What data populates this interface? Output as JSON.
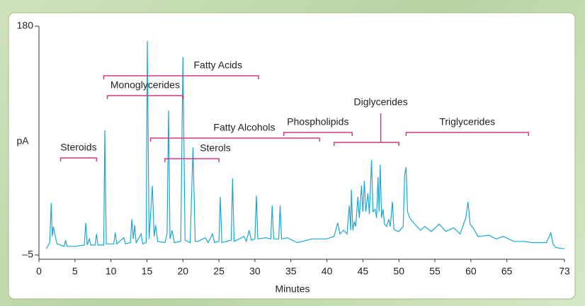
{
  "chart_data": {
    "type": "line",
    "y_label": "pA",
    "x_label": "Minutes",
    "xlim": [
      0,
      73
    ],
    "xticks": [
      0,
      5,
      10,
      15,
      20,
      25,
      30,
      35,
      40,
      45,
      50,
      55,
      60,
      65,
      73
    ],
    "ylim": [
      -5,
      180
    ],
    "yticks": [
      {
        "value": -5,
        "label": "–5"
      },
      180
    ],
    "series": [
      {
        "color": "#1ba8d8",
        "x": [
          1.0,
          1.2,
          1.5,
          1.7,
          1.85,
          2.0,
          2.2,
          2.5,
          3.0,
          3.5,
          3.7,
          3.9,
          5,
          6.3,
          6.5,
          6.7,
          7.0,
          7.2,
          7.8,
          8.0,
          8.2,
          9.0,
          9.15,
          9.35,
          10.4,
          10.6,
          10.8,
          11.8,
          12.0,
          12.7,
          12.9,
          13.1,
          13.3,
          13.5,
          14.2,
          14.4,
          14.9,
          15.05,
          15.3,
          15.75,
          16.0,
          16.2,
          16.5,
          17.5,
          17.8,
          18.0,
          18.2,
          18.5,
          18.8,
          19.7,
          20.0,
          20.3,
          21.0,
          21.4,
          21.7,
          22.1,
          23.1,
          23.5,
          24.1,
          24.4,
          25.0,
          25.2,
          25.4,
          26.0,
          26.7,
          26.9,
          27.1,
          28.5,
          28.8,
          29.2,
          29.5,
          30.0,
          30.2,
          30.4,
          31.5,
          32.2,
          32.4,
          32.6,
          33.3,
          33.5,
          33.7,
          34.5,
          35.9,
          37.9,
          39.9,
          41.0,
          41.5,
          41.8,
          42.3,
          42.8,
          43.1,
          43.3,
          43.4,
          43.6,
          43.8,
          44.0,
          44.3,
          44.5,
          44.8,
          45.0,
          45.2,
          45.4,
          45.7,
          45.9,
          46.2,
          46.4,
          46.7,
          46.9,
          47.1,
          47.25,
          47.4,
          47.6,
          47.8,
          48.0,
          48.3,
          48.6,
          48.8,
          49.1,
          49.3,
          49.5,
          50.0,
          50.6,
          50.8,
          51.0,
          51.2,
          51.5,
          52.2,
          53.0,
          53.6,
          54.5,
          55.6,
          56.5,
          57.6,
          58.5,
          59.3,
          59.6,
          59.9,
          60.3,
          61.0,
          62.5,
          63.5,
          64.5,
          66.0,
          67.4,
          68.5,
          70.5,
          71.1,
          71.4,
          71.8,
          73.0
        ],
        "values": [
          0,
          2,
          5,
          37,
          10,
          18,
          12,
          4,
          3,
          2,
          7,
          2,
          2,
          3,
          21,
          3,
          8,
          3,
          3,
          12,
          3,
          3,
          96,
          4,
          4,
          13,
          4,
          9,
          4,
          5,
          24,
          8,
          19,
          5,
          12,
          4,
          5,
          168,
          8,
          51,
          10,
          19,
          6,
          5,
          12,
          112,
          8,
          15,
          5,
          6,
          155,
          7,
          5,
          82,
          6,
          6,
          9,
          5,
          12,
          5,
          6,
          42,
          5,
          6,
          7,
          57,
          6,
          10,
          6,
          15,
          7,
          8,
          43,
          8,
          9,
          8,
          35,
          8,
          8,
          35,
          8,
          9,
          5,
          8,
          8,
          10,
          21,
          12,
          15,
          12,
          35,
          15,
          48,
          15,
          22,
          18,
          42,
          25,
          51,
          30,
          55,
          30,
          45,
          28,
          72,
          30,
          32,
          25,
          58,
          30,
          68,
          25,
          32,
          20,
          18,
          24,
          18,
          38,
          16,
          15,
          14,
          18,
          60,
          66,
          30,
          25,
          20,
          15,
          18,
          14,
          20,
          14,
          17,
          12,
          25,
          38,
          20,
          17,
          10,
          11,
          8,
          10,
          6,
          6,
          5,
          5,
          13,
          4,
          1,
          0
        ]
      }
    ],
    "annotations": [
      {
        "text": "Fatty Acids",
        "start": 9,
        "end": 30.5
      },
      {
        "text": "Monoglycerides",
        "start": 9.5,
        "end": 20
      },
      {
        "text": "Steroids",
        "start": 3,
        "end": 8
      },
      {
        "text": "Fatty Alcohols",
        "start": 15.5,
        "end": 39
      },
      {
        "text": "Sterols",
        "start": 17.5,
        "end": 25
      },
      {
        "text": "Phospholipids",
        "start": 34,
        "end": 43.5
      },
      {
        "text": "Diglycerides",
        "start": 41,
        "end": 50
      },
      {
        "text": "Triglycerides",
        "start": 51,
        "end": 68
      }
    ],
    "annotation_color": "#d23a8a"
  }
}
